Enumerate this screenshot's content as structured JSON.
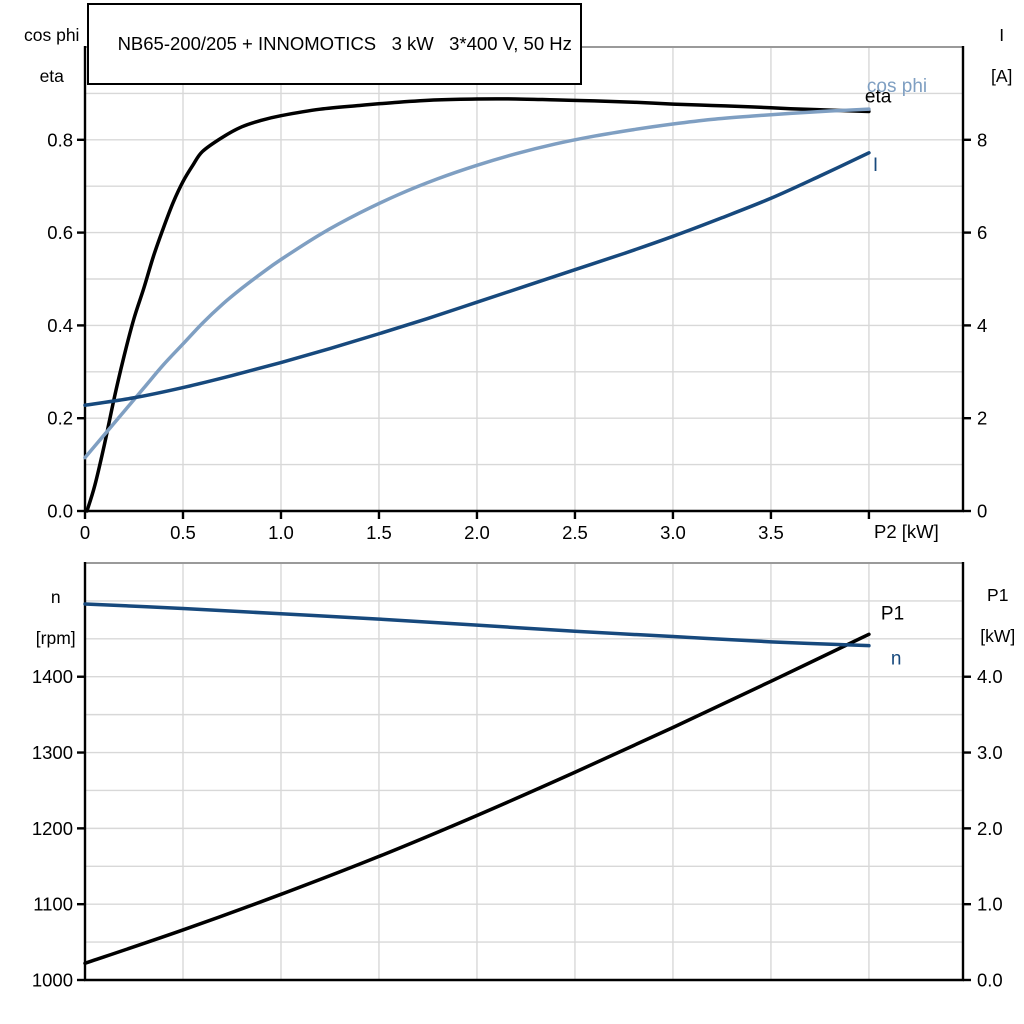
{
  "title": "NB65-200/205 + INNOMOTICS   3 kW   3*400 V, 50 Hz",
  "colors": {
    "black": "#000000",
    "dark_blue": "#17497d",
    "light_blue": "#7f9fc2",
    "grid": "#d8d8d8",
    "top_border": "#9a9a9a",
    "axis": "#000000"
  },
  "axis_corner_labels": {
    "top_left_line1": "cos phi",
    "top_left_line2": "eta",
    "top_right_line1": "I",
    "top_right_line2": "[A]",
    "bottom_left_line1": "n",
    "bottom_left_line2": "[rpm]",
    "bottom_right_line1": "P1",
    "bottom_right_line2": "[kW]",
    "x_axis_label": "P2 [kW]"
  },
  "chart_data": [
    {
      "type": "line",
      "title": "NB65-200/205 + INNOMOTICS   3 kW   3*400 V, 50 Hz",
      "x": {
        "label": "P2 [kW]",
        "min": 0,
        "max": 4.48,
        "grid_step": 0.5,
        "grid_max": 4.0,
        "ticks": [
          {
            "v": 0,
            "label": "0"
          },
          {
            "v": 0.5,
            "label": "0.5"
          },
          {
            "v": 1,
            "label": "1.0"
          },
          {
            "v": 1.5,
            "label": "1.5"
          },
          {
            "v": 2,
            "label": "2.0"
          },
          {
            "v": 2.5,
            "label": "2.5"
          },
          {
            "v": 3,
            "label": "3.0"
          },
          {
            "v": 3.5,
            "label": "3.5"
          },
          {
            "v": 4,
            "label": ""
          }
        ]
      },
      "left": {
        "label": "cos phi / eta",
        "min": 0,
        "max": 1.0,
        "grid_step": 0.1,
        "ticks": [
          {
            "v": 0,
            "label": "0.0"
          },
          {
            "v": 0.2,
            "label": "0.2"
          },
          {
            "v": 0.4,
            "label": "0.4"
          },
          {
            "v": 0.6,
            "label": "0.6"
          },
          {
            "v": 0.8,
            "label": "0.8"
          }
        ]
      },
      "right": {
        "label": "I [A]",
        "min": 0,
        "max": 10,
        "ticks": [
          {
            "v": 0,
            "label": "0"
          },
          {
            "v": 2,
            "label": "2"
          },
          {
            "v": 4,
            "label": "4"
          },
          {
            "v": 6,
            "label": "6"
          },
          {
            "v": 8,
            "label": "8"
          }
        ]
      },
      "series": [
        {
          "name": "eta",
          "label": "eta",
          "axis": "left",
          "color_key": "black",
          "points": [
            [
              0.01,
              0.0
            ],
            [
              0.05,
              0.055
            ],
            [
              0.1,
              0.145
            ],
            [
              0.15,
              0.245
            ],
            [
              0.2,
              0.335
            ],
            [
              0.25,
              0.415
            ],
            [
              0.3,
              0.48
            ],
            [
              0.35,
              0.55
            ],
            [
              0.4,
              0.61
            ],
            [
              0.45,
              0.665
            ],
            [
              0.5,
              0.71
            ],
            [
              0.55,
              0.745
            ],
            [
              0.6,
              0.775
            ],
            [
              0.7,
              0.805
            ],
            [
              0.8,
              0.828
            ],
            [
              0.9,
              0.842
            ],
            [
              1.0,
              0.852
            ],
            [
              1.2,
              0.866
            ],
            [
              1.4,
              0.874
            ],
            [
              1.6,
              0.881
            ],
            [
              1.8,
              0.886
            ],
            [
              2.0,
              0.888
            ],
            [
              2.2,
              0.888
            ],
            [
              2.4,
              0.886
            ],
            [
              2.6,
              0.884
            ],
            [
              2.8,
              0.881
            ],
            [
              3.0,
              0.877
            ],
            [
              3.2,
              0.874
            ],
            [
              3.4,
              0.871
            ],
            [
              3.6,
              0.867
            ],
            [
              3.8,
              0.864
            ],
            [
              4.0,
              0.861
            ]
          ]
        },
        {
          "name": "cos_phi",
          "label": "cos phi",
          "axis": "left",
          "color_key": "light_blue",
          "points": [
            [
              0,
              0.115
            ],
            [
              0.1,
              0.165
            ],
            [
              0.2,
              0.215
            ],
            [
              0.3,
              0.265
            ],
            [
              0.4,
              0.315
            ],
            [
              0.5,
              0.36
            ],
            [
              0.6,
              0.405
            ],
            [
              0.7,
              0.445
            ],
            [
              0.8,
              0.48
            ],
            [
              0.9,
              0.512
            ],
            [
              1.0,
              0.542
            ],
            [
              1.2,
              0.596
            ],
            [
              1.4,
              0.642
            ],
            [
              1.6,
              0.682
            ],
            [
              1.8,
              0.716
            ],
            [
              2.0,
              0.745
            ],
            [
              2.2,
              0.77
            ],
            [
              2.4,
              0.791
            ],
            [
              2.6,
              0.808
            ],
            [
              2.8,
              0.822
            ],
            [
              3.0,
              0.834
            ],
            [
              3.2,
              0.844
            ],
            [
              3.4,
              0.851
            ],
            [
              3.6,
              0.857
            ],
            [
              3.8,
              0.862
            ],
            [
              4.0,
              0.866
            ]
          ]
        },
        {
          "name": "I",
          "label": "I",
          "axis": "right",
          "color_key": "dark_blue",
          "points": [
            [
              0,
              2.28
            ],
            [
              0.25,
              2.44
            ],
            [
              0.5,
              2.66
            ],
            [
              0.75,
              2.92
            ],
            [
              1.0,
              3.2
            ],
            [
              1.25,
              3.5
            ],
            [
              1.5,
              3.82
            ],
            [
              1.75,
              4.15
            ],
            [
              2.0,
              4.5
            ],
            [
              2.25,
              4.85
            ],
            [
              2.5,
              5.2
            ],
            [
              2.75,
              5.55
            ],
            [
              3.0,
              5.92
            ],
            [
              3.25,
              6.32
            ],
            [
              3.5,
              6.74
            ],
            [
              3.75,
              7.22
            ],
            [
              4.0,
              7.72
            ]
          ]
        }
      ]
    },
    {
      "type": "line",
      "x": {
        "label": "",
        "min": 0,
        "max": 4.48,
        "grid_step": 0.5,
        "grid_max": 4.0,
        "ticks": []
      },
      "left": {
        "label": "n [rpm]",
        "min": 1000,
        "max": 1550,
        "grid_step": 50,
        "ticks": [
          {
            "v": 1000,
            "label": "1000"
          },
          {
            "v": 1100,
            "label": "1100"
          },
          {
            "v": 1200,
            "label": "1200"
          },
          {
            "v": 1300,
            "label": "1300"
          },
          {
            "v": 1400,
            "label": "1400"
          }
        ]
      },
      "right": {
        "label": "P1 [kW]",
        "min": 0,
        "max": 5.5,
        "ticks": [
          {
            "v": 0,
            "label": "0.0"
          },
          {
            "v": 1,
            "label": "1.0"
          },
          {
            "v": 2,
            "label": "2.0"
          },
          {
            "v": 3,
            "label": "3.0"
          },
          {
            "v": 4,
            "label": "4.0"
          }
        ]
      },
      "series": [
        {
          "name": "P1",
          "label": "P1",
          "axis": "right",
          "color_key": "black",
          "points": [
            [
              0,
              0.22
            ],
            [
              0.5,
              0.66
            ],
            [
              1.0,
              1.13
            ],
            [
              1.5,
              1.63
            ],
            [
              2.0,
              2.17
            ],
            [
              2.5,
              2.74
            ],
            [
              3.0,
              3.33
            ],
            [
              3.5,
              3.94
            ],
            [
              4.0,
              4.56
            ]
          ]
        },
        {
          "name": "n",
          "label": "n",
          "axis": "left",
          "color_key": "dark_blue",
          "points": [
            [
              0,
              1496
            ],
            [
              0.5,
              1490
            ],
            [
              1.0,
              1483
            ],
            [
              1.5,
              1476
            ],
            [
              2.0,
              1468
            ],
            [
              2.5,
              1460
            ],
            [
              3.0,
              1453
            ],
            [
              3.5,
              1446
            ],
            [
              4.0,
              1441
            ]
          ]
        }
      ]
    }
  ]
}
